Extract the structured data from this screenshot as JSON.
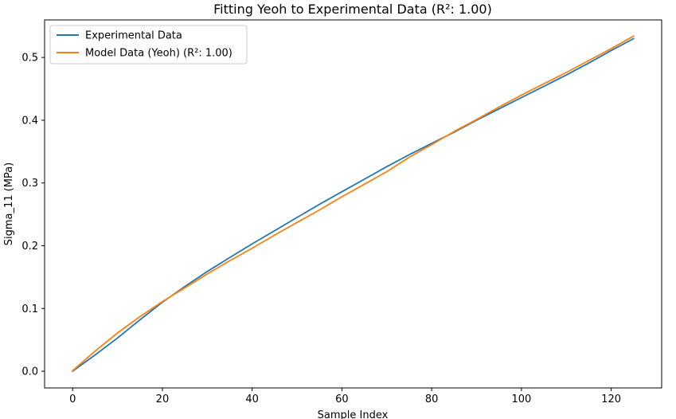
{
  "chart_data": {
    "type": "line",
    "title": "Fitting Yeoh to Experimental Data (R²: 1.00)",
    "xlabel": "Sample Index",
    "ylabel": "Sigma_11 (MPa)",
    "xlim": [
      -6.25,
      131.25
    ],
    "ylim": [
      -0.0266,
      0.5598
    ],
    "xticks": [
      0,
      20,
      40,
      60,
      80,
      100,
      120
    ],
    "yticks": [
      0.0,
      0.1,
      0.2,
      0.3,
      0.4,
      0.5
    ],
    "xtick_labels": [
      "0",
      "20",
      "40",
      "60",
      "80",
      "100",
      "120"
    ],
    "ytick_labels": [
      "0.0",
      "0.1",
      "0.2",
      "0.3",
      "0.4",
      "0.5"
    ],
    "grid": false,
    "legend_position": "upper-left",
    "series": [
      {
        "name": "Experimental Data",
        "color": "#1f77b4",
        "x": [
          0,
          5,
          10,
          15,
          20,
          25,
          30,
          35,
          40,
          45,
          50,
          55,
          60,
          65,
          70,
          75,
          80,
          85,
          90,
          95,
          100,
          105,
          110,
          115,
          120,
          125
        ],
        "y": [
          0.0,
          0.026,
          0.053,
          0.082,
          0.11,
          0.135,
          0.159,
          0.181,
          0.203,
          0.224,
          0.245,
          0.266,
          0.286,
          0.306,
          0.326,
          0.345,
          0.363,
          0.381,
          0.4,
          0.418,
          0.436,
          0.454,
          0.472,
          0.491,
          0.511,
          0.53
        ]
      },
      {
        "name": "Model Data (Yeoh) (R²: 1.00)",
        "color": "#ff7f0e",
        "x": [
          0,
          5,
          10,
          15,
          20,
          25,
          30,
          35,
          40,
          45,
          50,
          55,
          60,
          65,
          70,
          75,
          80,
          85,
          90,
          95,
          100,
          105,
          110,
          115,
          120,
          125
        ],
        "y": [
          0.001,
          0.032,
          0.061,
          0.087,
          0.111,
          0.133,
          0.155,
          0.176,
          0.196,
          0.217,
          0.237,
          0.257,
          0.278,
          0.298,
          0.318,
          0.341,
          0.361,
          0.382,
          0.401,
          0.421,
          0.44,
          0.458,
          0.476,
          0.495,
          0.514,
          0.534
        ]
      }
    ]
  }
}
